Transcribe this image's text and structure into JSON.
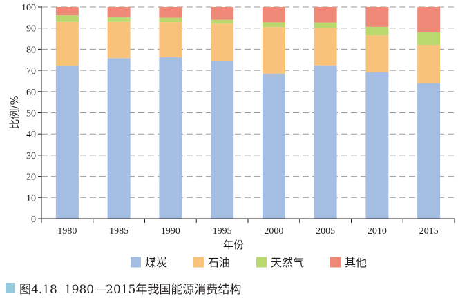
{
  "chart_data": {
    "type": "bar",
    "stacked": true,
    "title": "",
    "xlabel": "年份",
    "ylabel": "比例/%",
    "ylim": [
      0,
      100
    ],
    "yticks": [
      0,
      10,
      20,
      30,
      40,
      50,
      60,
      70,
      80,
      90,
      100
    ],
    "grid": "horizontal-dashed",
    "legend_position": "bottom",
    "categories": [
      "1980",
      "1985",
      "1990",
      "1995",
      "2000",
      "2005",
      "2010",
      "2015"
    ],
    "series": [
      {
        "name": "煤炭",
        "color": "#a3bde3",
        "values": [
          72.2,
          75.8,
          76.2,
          74.6,
          68.5,
          72.4,
          69.2,
          64.0
        ]
      },
      {
        "name": "石油",
        "color": "#f9c27b",
        "values": [
          20.7,
          17.1,
          16.6,
          17.5,
          22.0,
          17.8,
          17.4,
          18.1
        ]
      },
      {
        "name": "天然气",
        "color": "#b9d96e",
        "values": [
          3.1,
          2.2,
          2.1,
          1.8,
          2.2,
          2.4,
          4.0,
          5.9
        ]
      },
      {
        "name": "其他",
        "color": "#ef8977",
        "values": [
          4.0,
          4.9,
          5.1,
          6.1,
          7.3,
          7.4,
          9.4,
          12.0
        ]
      }
    ]
  },
  "caption": {
    "figure_number": "图4.18",
    "text": "1980—2015年我国能源消费结构"
  }
}
